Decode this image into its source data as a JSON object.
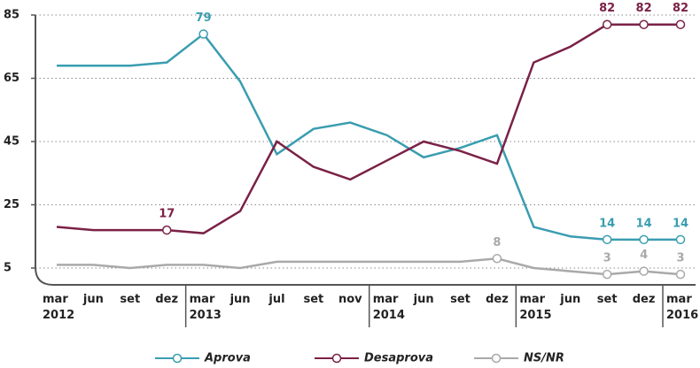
{
  "chart_data": {
    "type": "line",
    "categories": [
      "mar\n2012",
      "jun",
      "set",
      "dez",
      "mar\n2013",
      "jun",
      "jul",
      "set",
      "nov",
      "mar\n2014",
      "jun",
      "set",
      "dez",
      "mar\n2015",
      "jun",
      "set",
      "dez",
      "mar\n2016"
    ],
    "series": [
      {
        "name": "Aprova",
        "color": "#3a9db0",
        "values": [
          69,
          69,
          69,
          70,
          79,
          64,
          41,
          49,
          51,
          47,
          40,
          43,
          47,
          18,
          15,
          14,
          14,
          14
        ],
        "value_labels": [
          null,
          null,
          null,
          null,
          "79",
          null,
          null,
          null,
          null,
          null,
          null,
          null,
          null,
          null,
          null,
          "14",
          "14",
          "14"
        ]
      },
      {
        "name": "Desaprova",
        "color": "#7a2146",
        "values": [
          18,
          17,
          17,
          17,
          16,
          23,
          45,
          37,
          33,
          39,
          45,
          42,
          38,
          70,
          75,
          82,
          82,
          82
        ],
        "value_labels": [
          null,
          null,
          null,
          "17",
          null,
          null,
          null,
          null,
          null,
          null,
          null,
          null,
          null,
          null,
          null,
          "82",
          "82",
          "82"
        ]
      },
      {
        "name": "NS/NR",
        "color": "#a9a9a9",
        "values": [
          6,
          6,
          5,
          6,
          6,
          5,
          7,
          7,
          7,
          7,
          7,
          7,
          8,
          5,
          4,
          3,
          4,
          3
        ],
        "value_labels": [
          null,
          null,
          null,
          null,
          null,
          null,
          null,
          null,
          null,
          null,
          null,
          null,
          "8",
          null,
          null,
          "3",
          "4",
          "3"
        ]
      }
    ],
    "ylim": [
      5,
      85
    ],
    "yticks": [
      5,
      25,
      45,
      65,
      85
    ],
    "grid": true,
    "legend": "bottom"
  }
}
